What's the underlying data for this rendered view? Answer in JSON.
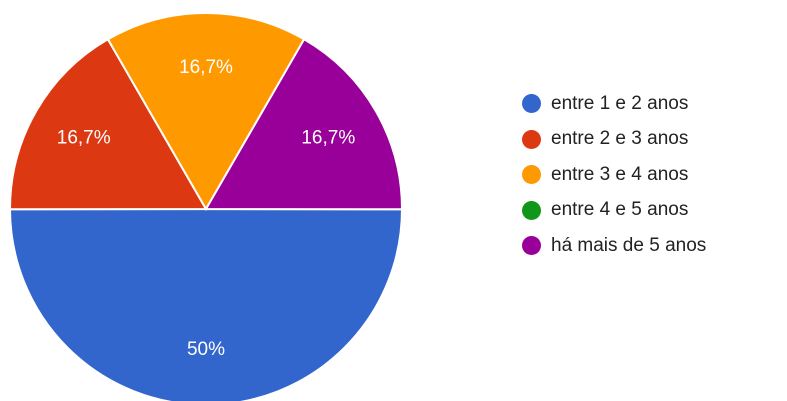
{
  "chart_data": {
    "type": "pie",
    "categories": [
      "entre 1 e 2 anos",
      "entre 2 e 3 anos",
      "entre 3 e 4 anos",
      "entre 4 e 5 anos",
      "há mais de 5 anos"
    ],
    "values": [
      50,
      16.7,
      16.7,
      0,
      16.7
    ],
    "value_labels": [
      "50%",
      "16,7%",
      "16,7%",
      "",
      "16,7%"
    ],
    "colors": [
      "#3366cc",
      "#dc3912",
      "#ff9900",
      "#109618",
      "#990099"
    ],
    "legend_position": "right",
    "title": ""
  }
}
